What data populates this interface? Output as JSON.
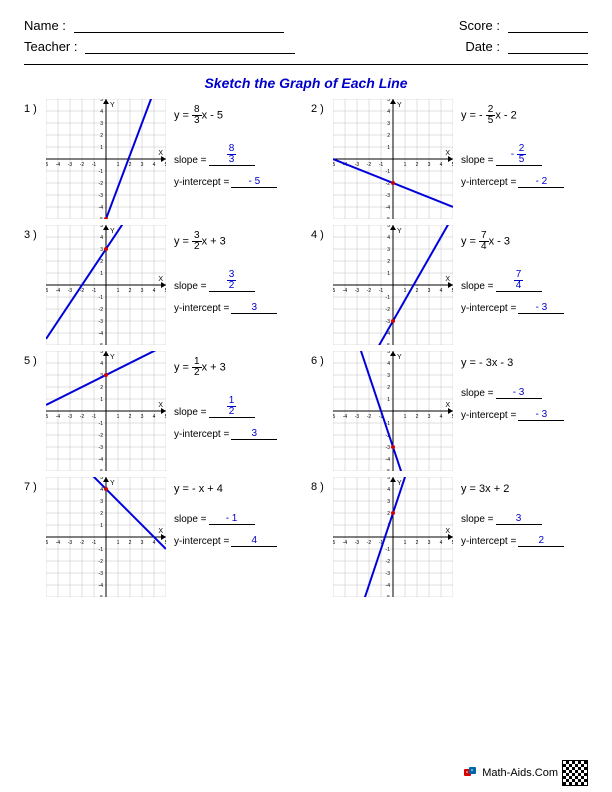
{
  "header": {
    "name_label": "Name :",
    "score_label": "Score :",
    "teacher_label": "Teacher :",
    "date_label": "Date :"
  },
  "title": "Sketch the Graph of Each Line",
  "chart_style": {
    "xlim": [
      -5,
      5
    ],
    "ylim": [
      -5,
      5
    ],
    "tick_step": 1,
    "grid_color": "#c0c0c0",
    "axis_color": "#000000",
    "line_color": "#0000dd",
    "line_width": 2,
    "marker_color": "#cc0000",
    "background_color": "#ffffff",
    "tick_fontsize": 5,
    "axis_label_fontsize": 7
  },
  "labels": {
    "slope": "slope =",
    "yint": "y-intercept ="
  },
  "problems": [
    {
      "num": "1 )",
      "eq_pre": "y = ",
      "eq_frac_n": "8",
      "eq_frac_d": "3",
      "eq_post": "x - 5",
      "slope_frac_n": "8",
      "slope_frac_d": "3",
      "slope_val": null,
      "yint": "- 5",
      "m": 2.6667,
      "b": -5
    },
    {
      "num": "2 )",
      "eq_pre": "y = - ",
      "eq_frac_n": "2",
      "eq_frac_d": "5",
      "eq_post": "x - 2",
      "slope_frac_n": "2",
      "slope_frac_d": "5",
      "slope_neg": true,
      "yint": "- 2",
      "m": -0.4,
      "b": -2
    },
    {
      "num": "3 )",
      "eq_pre": "y = ",
      "eq_frac_n": "3",
      "eq_frac_d": "2",
      "eq_post": "x + 3",
      "slope_frac_n": "3",
      "slope_frac_d": "2",
      "yint": "3",
      "m": 1.5,
      "b": 3
    },
    {
      "num": "4 )",
      "eq_pre": "y = ",
      "eq_frac_n": "7",
      "eq_frac_d": "4",
      "eq_post": "x - 3",
      "slope_frac_n": "7",
      "slope_frac_d": "4",
      "yint": "- 3",
      "m": 1.75,
      "b": -3
    },
    {
      "num": "5 )",
      "eq_pre": "y = ",
      "eq_frac_n": "1",
      "eq_frac_d": "2",
      "eq_post": "x + 3",
      "slope_frac_n": "1",
      "slope_frac_d": "2",
      "yint": "3",
      "m": 0.5,
      "b": 3
    },
    {
      "num": "6 )",
      "eq_pre": "y = - 3x - 3",
      "eq_frac_n": null,
      "slope_val": "- 3",
      "yint": "- 3",
      "m": -3,
      "b": -3
    },
    {
      "num": "7 )",
      "eq_pre": "y = - x + 4",
      "eq_frac_n": null,
      "slope_val": "- 1",
      "yint": "4",
      "m": -1,
      "b": 4
    },
    {
      "num": "8 )",
      "eq_pre": "y = 3x + 2",
      "eq_frac_n": null,
      "slope_val": "3",
      "yint": "2",
      "m": 3,
      "b": 2
    }
  ],
  "footer": "Math-Aids.Com"
}
